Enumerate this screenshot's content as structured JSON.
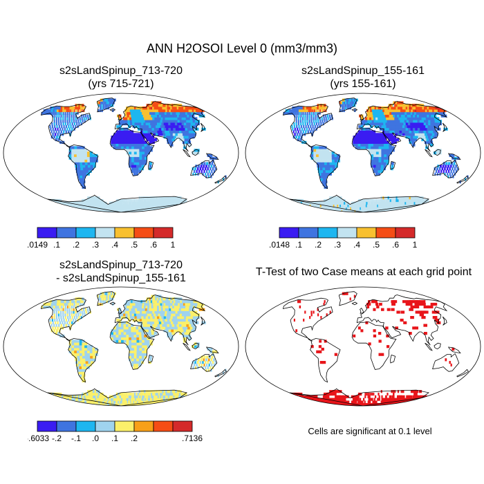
{
  "title": "ANN H2OSOI Level 0 (mm3/mm3)",
  "panels": [
    {
      "line1": "s2sLandSpinup_713-720",
      "line2": "(yrs 715-721)"
    },
    {
      "line1": "s2sLandSpinup_155-161",
      "line2": "(yrs 155-161)"
    },
    {
      "line1": "s2sLandSpinup_713-720",
      "line2": "- s2sLandSpinup_155-161"
    },
    {
      "line1": "T-Test of two Case means at each grid point"
    }
  ],
  "colorbars": [
    {
      "colors": [
        "#3a1cf2",
        "#3f74e0",
        "#1eb6f0",
        "#c2e3f0",
        "#f8c030",
        "#f54d15",
        "#d42a2a"
      ],
      "labels": [
        ".0149",
        ".1",
        ".2",
        ".3",
        ".4",
        ".5",
        ".6",
        "1"
      ]
    },
    {
      "colors": [
        "#3a1cf2",
        "#3f74e0",
        "#1eb6f0",
        "#c2e3f0",
        "#f8c030",
        "#f54d15",
        "#d42a2a"
      ],
      "labels": [
        ".0148",
        ".1",
        ".2",
        ".3",
        ".4",
        ".5",
        ".6",
        "1"
      ]
    },
    {
      "colors": [
        "#3a1cf2",
        "#3f74e0",
        "#1eb6f0",
        "#9fd3ee",
        "#fbf06a",
        "#f8a018",
        "#f54d15",
        "#d42a2a"
      ],
      "labels": [
        "-.6033",
        "-.2",
        "-.1",
        ".0",
        ".1",
        ".2",
        ".7136"
      ],
      "label_slots": [
        0,
        1,
        2,
        3,
        4,
        5,
        8
      ]
    }
  ],
  "significance_note": "Cells are significant at 0.1 level",
  "map_colors": {
    "ocean": "#ffffff",
    "coast": "#000000",
    "sig_mark": "#e8151a"
  }
}
